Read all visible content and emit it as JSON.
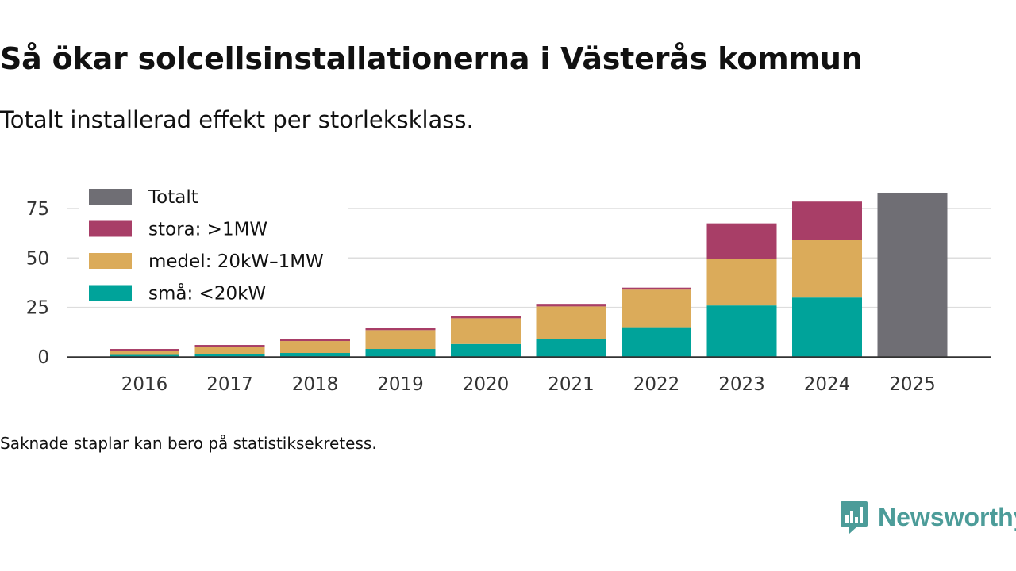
{
  "title": "Så ökar solcellsinstallationerna i Västerås kommun",
  "subtitle": "Totalt installerad effekt per storleksklass.",
  "note": "Saknade staplar kan bero på statistiksekretess.",
  "brand": {
    "name": "Newsworthy",
    "icon": "newsworthy-logo-icon",
    "color": "#4c9c99"
  },
  "chart_data": {
    "type": "bar",
    "stacked": true,
    "categories": [
      "2016",
      "2017",
      "2018",
      "2019",
      "2020",
      "2021",
      "2022",
      "2023",
      "2024",
      "2025"
    ],
    "series": [
      {
        "name": "små: <20kW",
        "color": "#00a39a",
        "values": [
          1,
          1.5,
          2,
          4,
          6.5,
          9,
          15,
          26,
          30,
          null
        ]
      },
      {
        "name": "medel: 20kW–1MW",
        "color": "#dbab5a",
        "values": [
          2,
          3.5,
          6,
          9.5,
          13,
          16.5,
          19,
          23.5,
          29,
          null
        ]
      },
      {
        "name": "stora: >1MW",
        "color": "#a83e67",
        "values": [
          1,
          1,
          1,
          1,
          1.2,
          1.3,
          1,
          18,
          19.5,
          null
        ]
      },
      {
        "name": "Totalt",
        "color": "#6f6e74",
        "values": [
          null,
          null,
          null,
          null,
          null,
          null,
          null,
          null,
          null,
          83
        ]
      }
    ],
    "legend": [
      "Totalt",
      "stora: >1MW",
      "medel: 20kW–1MW",
      "små: <20kW"
    ],
    "legend_position": "top-left",
    "yticks": [
      0,
      25,
      50,
      75
    ],
    "ylim": [
      0,
      85
    ],
    "grid": true,
    "title": "",
    "xlabel": "",
    "ylabel": ""
  }
}
